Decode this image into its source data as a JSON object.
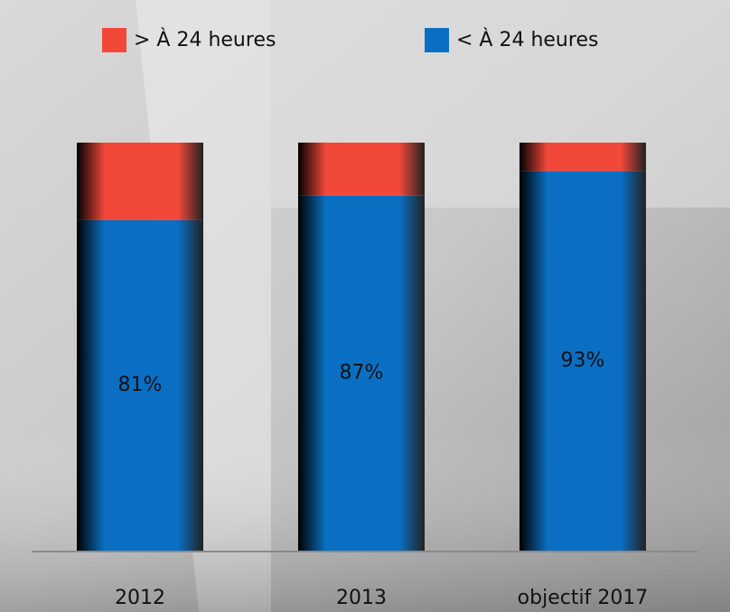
{
  "chart_data": {
    "type": "stacked_bar",
    "categories": [
      "2012",
      "2013",
      "objectif 2017"
    ],
    "series": [
      {
        "name": "> À 24 heures",
        "color": "#f2483a",
        "values": [
          19,
          13,
          7
        ]
      },
      {
        "name": "< À 24 heures",
        "color": "#0a6fc2",
        "values": [
          81,
          87,
          93
        ],
        "value_labels": [
          "81%",
          "87%",
          "93%"
        ]
      }
    ],
    "ylim": [
      0,
      100
    ]
  }
}
